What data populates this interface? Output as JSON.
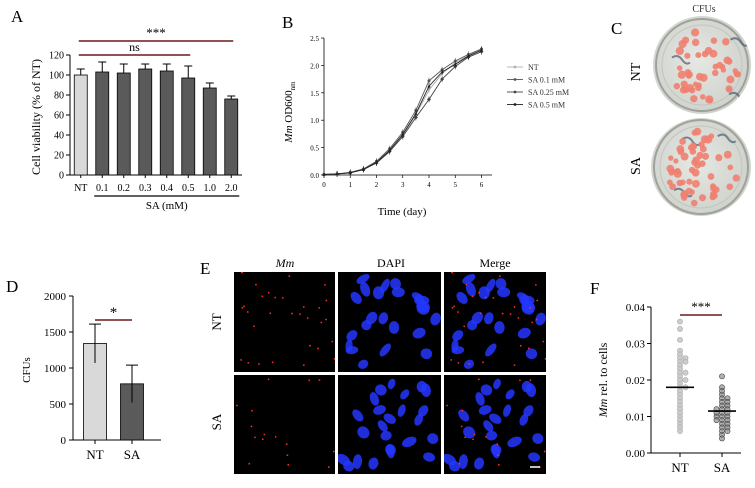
{
  "panels": {
    "A": {
      "letter": "A",
      "chart_data": {
        "type": "bar",
        "ylabel": "Cell viability (% of NT)",
        "ylim": [
          0,
          120
        ],
        "yticks": [
          "0",
          "20",
          "40",
          "60",
          "80",
          "100",
          "120"
        ],
        "categories": [
          "NT",
          "0.1",
          "0.2",
          "0.3",
          "0.4",
          "0.5",
          "1.0",
          "2.0"
        ],
        "values": [
          100,
          103,
          102,
          106,
          104,
          97,
          87,
          76
        ],
        "errors": [
          6,
          10,
          9,
          5,
          7,
          12,
          5,
          3
        ],
        "bar_colors": [
          "#d9d9d9",
          "#5a5a5a",
          "#5a5a5a",
          "#5a5a5a",
          "#5a5a5a",
          "#5a5a5a",
          "#5a5a5a",
          "#5a5a5a"
        ],
        "group_label": "SA (mM)",
        "annotations": [
          {
            "text": "***",
            "from": "NT",
            "to": "2.0"
          },
          {
            "text": "ns",
            "from": "NT",
            "to": "0.5"
          }
        ]
      }
    },
    "B": {
      "letter": "B",
      "chart_data": {
        "type": "line",
        "ylabel": "Mm OD600nm",
        "ylabel_italic": "Mm",
        "ylabel_main": " OD600",
        "ylabel_sub": "nm",
        "xlabel": "Time (day)",
        "xlim": [
          0,
          6.4
        ],
        "ylim": [
          0,
          2.5
        ],
        "xticks": [
          "0",
          "1",
          "2",
          "3",
          "4",
          "5",
          "6"
        ],
        "yticks": [
          "0.0",
          "0.5",
          "1.0",
          "1.5",
          "2.0",
          "2.5"
        ],
        "x": [
          0,
          0.5,
          1,
          1.5,
          2,
          2.5,
          3,
          3.5,
          4,
          4.5,
          5,
          5.5,
          6
        ],
        "series": [
          {
            "name": "NT",
            "color": "#b0b0b0",
            "values": [
              0.01,
              0.02,
              0.04,
              0.1,
              0.22,
              0.42,
              0.72,
              1.1,
              1.55,
              1.85,
              2.05,
              2.18,
              2.27
            ]
          },
          {
            "name": "SA 0.1 mM",
            "color": "#555555",
            "values": [
              0.01,
              0.02,
              0.05,
              0.11,
              0.25,
              0.48,
              0.78,
              1.18,
              1.72,
              1.92,
              2.08,
              2.2,
              2.3
            ]
          },
          {
            "name": "SA 0.25 mM",
            "color": "#444444",
            "values": [
              0.01,
              0.02,
              0.04,
              0.1,
              0.22,
              0.43,
              0.7,
              1.05,
              1.38,
              1.75,
              1.98,
              2.15,
              2.25
            ]
          },
          {
            "name": "SA 0.5 mM",
            "color": "#222222",
            "values": [
              0.01,
              0.02,
              0.04,
              0.1,
              0.23,
              0.45,
              0.74,
              1.12,
              1.62,
              1.88,
              2.02,
              2.17,
              2.28
            ]
          }
        ]
      }
    },
    "C": {
      "letter": "C",
      "title": "CFUs",
      "row_labels": [
        "NT",
        "SA"
      ],
      "colony_color": "#f08070"
    },
    "D": {
      "letter": "D",
      "chart_data": {
        "type": "bar",
        "ylabel": "CFUs",
        "ylim": [
          0,
          2000
        ],
        "yticks": [
          "0",
          "500",
          "1000",
          "1500",
          "2000"
        ],
        "categories": [
          "NT",
          "SA"
        ],
        "values": [
          1340,
          780
        ],
        "errors": [
          270,
          260
        ],
        "bar_colors": [
          "#d9d9d9",
          "#5a5a5a"
        ],
        "annotations": [
          {
            "text": "*",
            "from": "NT",
            "to": "SA"
          }
        ]
      }
    },
    "E": {
      "letter": "E",
      "col_labels": [
        "Mm",
        "DAPI",
        "Merge"
      ],
      "row_labels": [
        "NT",
        "SA"
      ],
      "nuclei_color": "#2436ff",
      "bacteria_color": "#ff2a2a"
    },
    "F": {
      "letter": "F",
      "chart_data": {
        "type": "scatter",
        "ylabel": "Mm rel. to cells",
        "ylabel_italic": "Mm",
        "ylabel_main": " rel. to cells",
        "ylim": [
          0,
          0.04
        ],
        "yticks": [
          "0.00",
          "0.01",
          "0.02",
          "0.03",
          "0.04"
        ],
        "categories": [
          "NT",
          "SA"
        ],
        "means": [
          0.018,
          0.0115
        ],
        "point_colors": [
          "#c8c8c8",
          "#707070"
        ],
        "series": [
          {
            "category": "NT",
            "values": [
              0.036,
              0.034,
              0.031,
              0.028,
              0.027,
              0.026,
              0.026,
              0.025,
              0.025,
              0.024,
              0.023,
              0.022,
              0.022,
              0.021,
              0.02,
              0.02,
              0.019,
              0.018,
              0.018,
              0.017,
              0.016,
              0.015,
              0.014,
              0.013,
              0.012,
              0.011,
              0.01,
              0.009,
              0.008,
              0.007,
              0.006
            ]
          },
          {
            "category": "SA",
            "values": [
              0.021,
              0.018,
              0.017,
              0.016,
              0.015,
              0.015,
              0.014,
              0.014,
              0.013,
              0.013,
              0.012,
              0.012,
              0.012,
              0.011,
              0.011,
              0.011,
              0.01,
              0.01,
              0.01,
              0.009,
              0.009,
              0.009,
              0.008,
              0.008,
              0.007,
              0.007,
              0.006,
              0.006,
              0.005,
              0.004
            ]
          }
        ],
        "annotations": [
          {
            "text": "***",
            "from": "NT",
            "to": "SA"
          }
        ]
      }
    }
  }
}
